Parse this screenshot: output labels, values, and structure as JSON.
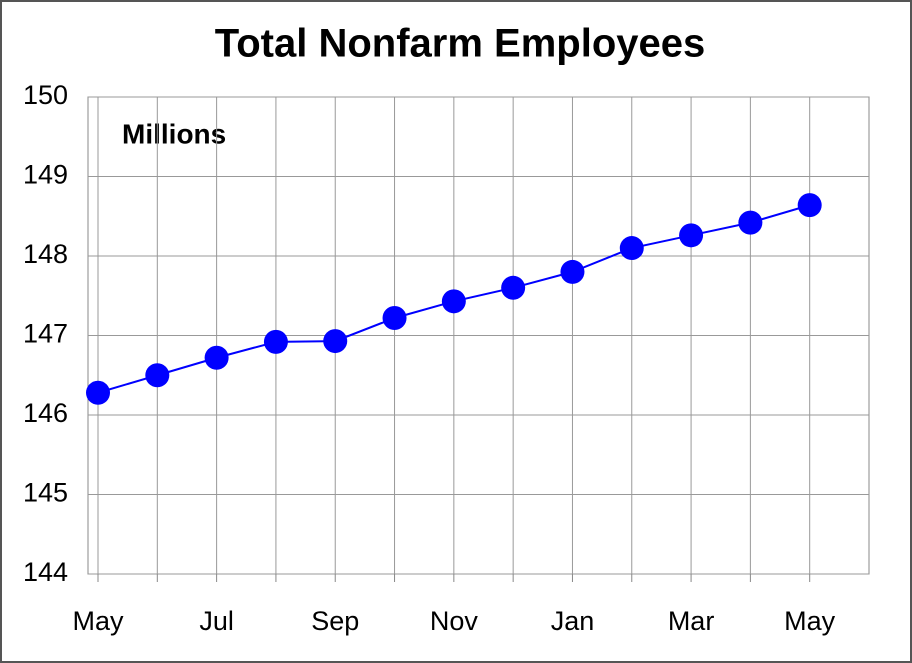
{
  "chart_data": {
    "type": "line",
    "title": "Total Nonfarm Employees",
    "annotation": "Millions",
    "categories": [
      "May",
      null,
      "Jul",
      null,
      "Sep",
      null,
      "Nov",
      null,
      "Jan",
      null,
      "Mar",
      null,
      "May"
    ],
    "series": [
      {
        "name": "Total Nonfarm Employees",
        "color": "#0000ff",
        "values": [
          146.28,
          146.5,
          146.72,
          146.92,
          146.93,
          147.22,
          147.43,
          147.6,
          147.8,
          148.1,
          148.26,
          148.42,
          148.64
        ]
      }
    ],
    "ylim": [
      144,
      150
    ],
    "yticks": [
      144,
      145,
      146,
      147,
      148,
      149,
      150
    ],
    "grid": true
  }
}
